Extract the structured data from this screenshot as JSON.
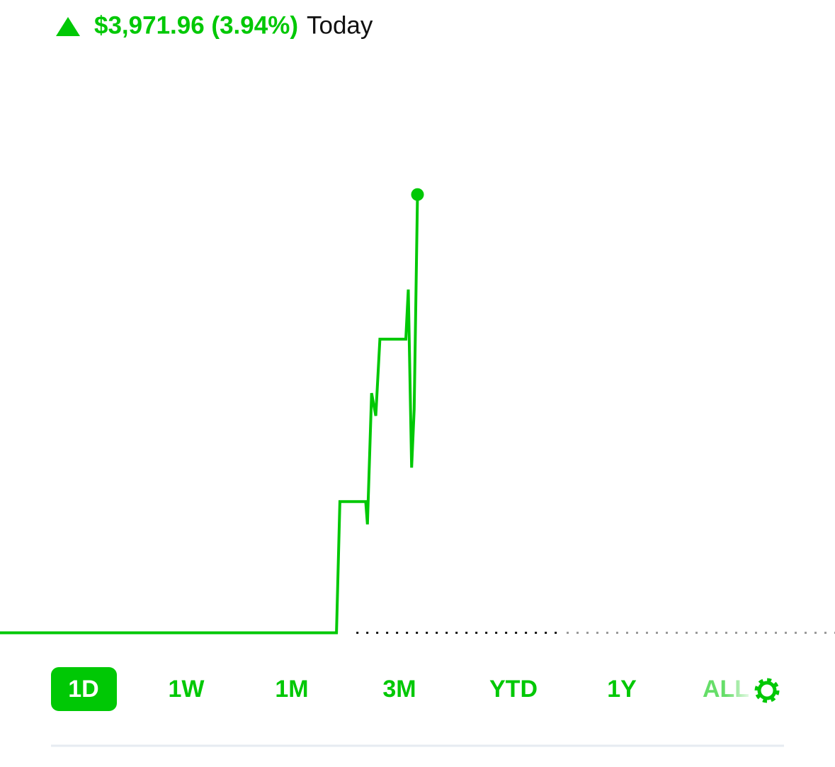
{
  "header": {
    "change": "$3,971.96 (3.94%)",
    "period": "Today"
  },
  "tabs": {
    "items": [
      "1D",
      "1W",
      "1M",
      "3M",
      "YTD",
      "1Y",
      "ALL"
    ],
    "selected": 0
  },
  "chart_data": {
    "type": "line",
    "color": "#00c805",
    "x": [
      0,
      0.403,
      0.407,
      0.438,
      0.44,
      0.445,
      0.45,
      0.455,
      0.486,
      0.489,
      0.493,
      0.496,
      0.5
    ],
    "values": [
      0,
      0,
      1189,
      1189,
      983,
      2172,
      1967,
      2661,
      2661,
      3111,
      1497,
      2025,
      3971.96
    ],
    "xlim": [
      0,
      1
    ],
    "ylim": [
      -170,
      5350
    ],
    "baseline": 0
  }
}
